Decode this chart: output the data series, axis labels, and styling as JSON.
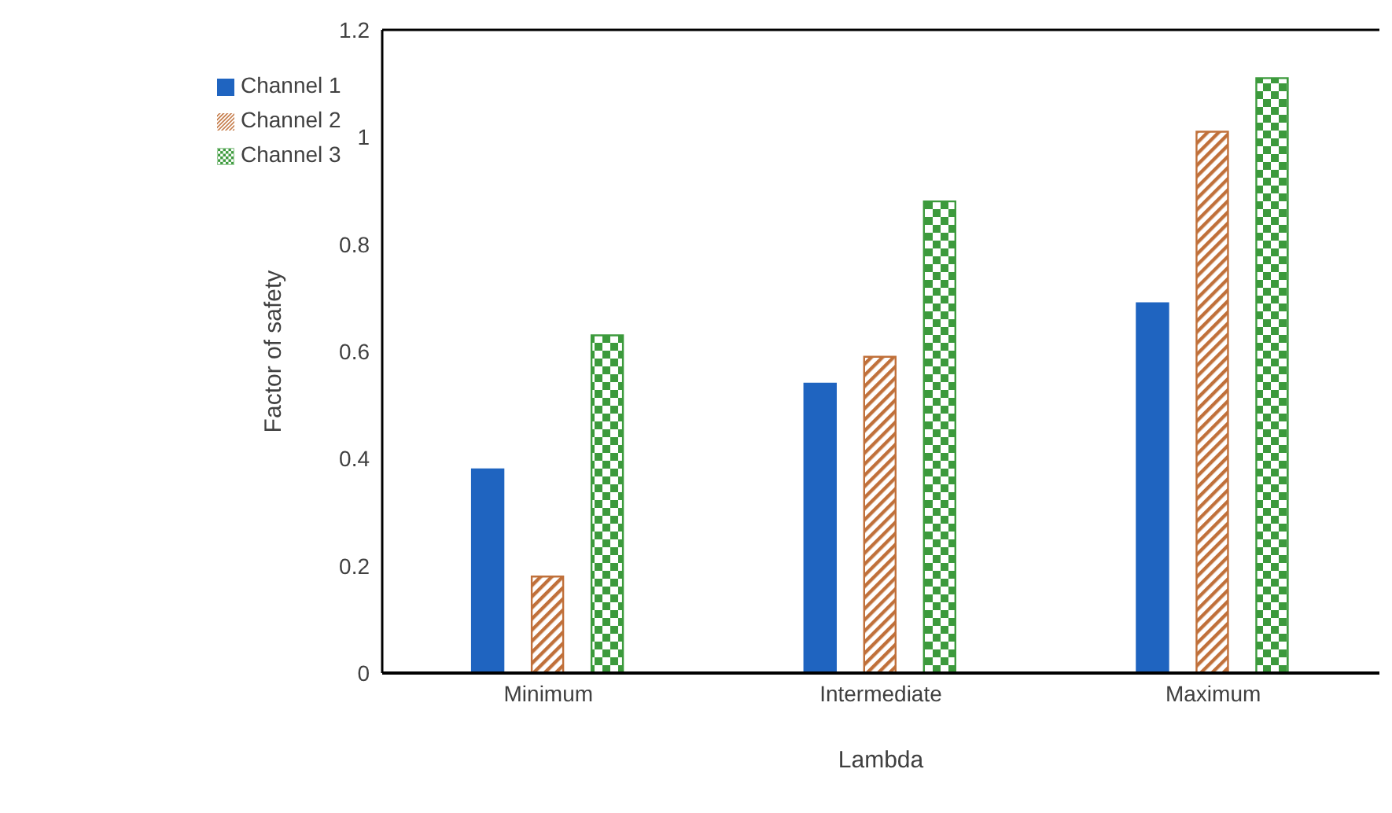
{
  "chart_data": {
    "type": "bar",
    "xlabel": "Lambda",
    "ylabel": "Factor of safety",
    "categories": [
      "Minimum",
      "Intermediate",
      "Maximum"
    ],
    "series": [
      {
        "name": "Channel 1",
        "color": "#1f64c0",
        "values": [
          0.38,
          0.54,
          0.69
        ]
      },
      {
        "name": "Channel 2",
        "color": "#c0703a",
        "values": [
          0.18,
          0.59,
          1.01
        ]
      },
      {
        "name": "Channel 3",
        "color": "#3c9a3c",
        "values": [
          0.63,
          0.88,
          1.11
        ]
      }
    ],
    "ylim": [
      0,
      1.2
    ],
    "yticks": [
      0,
      0.2,
      0.4,
      0.6,
      0.8,
      1,
      1.2
    ],
    "grid": false,
    "legend": "top left"
  }
}
